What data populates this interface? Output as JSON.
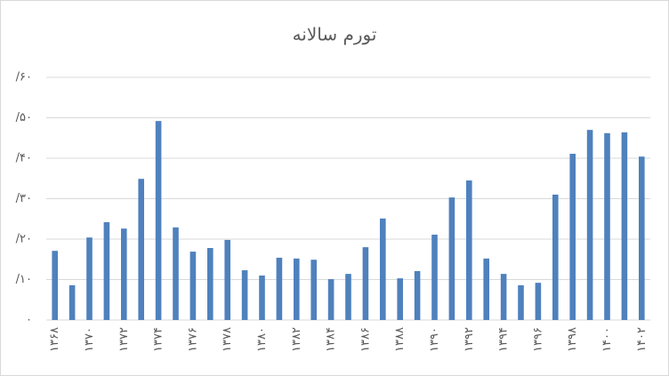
{
  "chart_data": {
    "type": "bar",
    "title": "تورم سالانه",
    "categories": [
      "۱۳۶۸",
      null,
      "۱۳۷۰",
      null,
      "۱۳۷۲",
      null,
      "۱۳۷۴",
      null,
      "۱۳۷۶",
      null,
      "۱۳۷۸",
      null,
      "۱۳۸۰",
      null,
      "۱۳۸۲",
      null,
      "۱۳۸۴",
      null,
      "۱۳۸۶",
      null,
      "۱۳۸۸",
      null,
      "۱۳۹۰",
      null,
      "۱۳۹۲",
      null,
      "۱۳۹۴",
      null,
      "۱۳۹۶",
      null,
      "۱۳۹۸",
      null,
      "۱۴۰۰",
      null,
      "۱۴۰۲"
    ],
    "values": [
      17.1,
      8.6,
      20.4,
      24.2,
      22.6,
      34.9,
      49.2,
      22.9,
      16.9,
      17.8,
      19.8,
      12.3,
      11.0,
      15.4,
      15.2,
      14.9,
      10.1,
      11.4,
      18.0,
      25.1,
      10.3,
      12.1,
      21.1,
      30.3,
      34.5,
      15.2,
      11.4,
      8.6,
      9.2,
      31.0,
      41.1,
      47.0,
      46.2,
      46.4,
      40.4
    ],
    "color": "#4f81bd",
    "ylim": [
      0,
      60
    ],
    "yticks": [
      {
        "value": 0,
        "label": "۰"
      },
      {
        "value": 10,
        "label": "/۱۰"
      },
      {
        "value": 20,
        "label": "/۲۰"
      },
      {
        "value": 30,
        "label": "/۳۰"
      },
      {
        "value": 40,
        "label": "/۴۰"
      },
      {
        "value": 50,
        "label": "/۵۰"
      },
      {
        "value": 60,
        "label": "/۶۰"
      }
    ],
    "grid": true
  }
}
